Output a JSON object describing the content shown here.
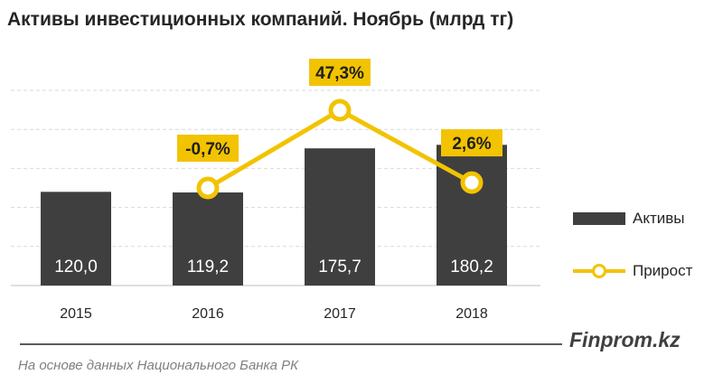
{
  "title": "Активы инвестиционных компаний. Ноябрь (млрд тг)",
  "chart_data": {
    "type": "bar",
    "categories": [
      "2015",
      "2016",
      "2017",
      "2018"
    ],
    "series": [
      {
        "name": "Активы",
        "type": "bar",
        "values": [
          120.0,
          119.2,
          175.7,
          180.2
        ],
        "labels": [
          "120,0",
          "119,2",
          "175,7",
          "180,2"
        ]
      },
      {
        "name": "Прирост",
        "type": "line",
        "values": [
          null,
          -0.7,
          47.3,
          2.6
        ],
        "labels": [
          "",
          "-0,7%",
          "47,3%",
          "2,6%"
        ]
      }
    ],
    "ylim": [
      0,
      250
    ],
    "grid": true,
    "legend": "right",
    "colors": {
      "bar": "#3f3f3f",
      "line": "#f2c300",
      "bar_label": "#ffffff",
      "grid": "#d9d9d9"
    }
  },
  "legend": {
    "bars": "Активы",
    "line": "Прирост"
  },
  "brand": "Finprom.kz",
  "source": "На основе данных  Национального  Банка РК"
}
